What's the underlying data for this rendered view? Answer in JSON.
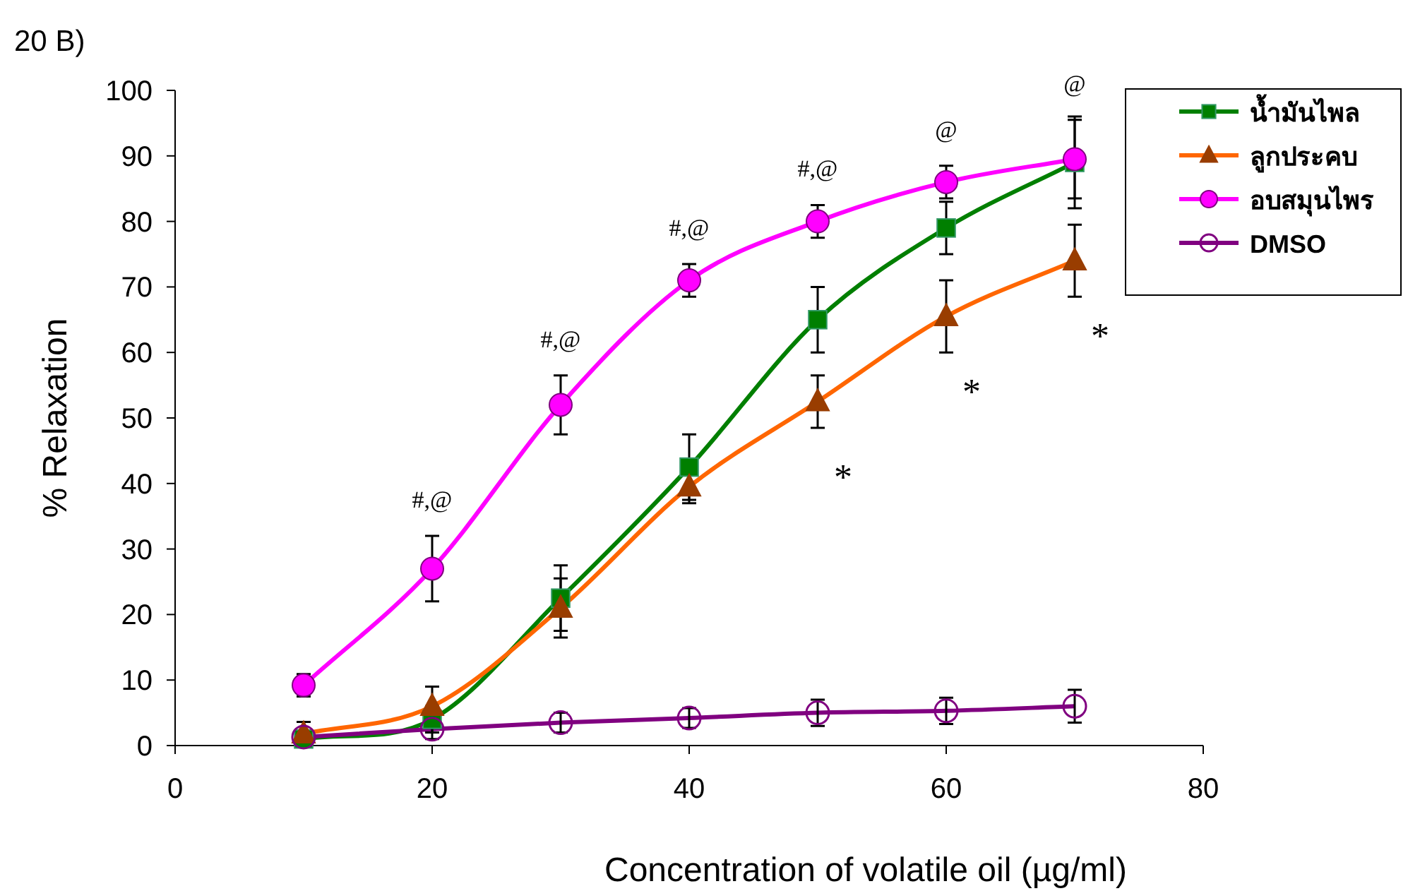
{
  "chart_data": {
    "type": "line",
    "title": "20 B)",
    "xlabel": "Concentration of volatile oil (µg/ml)",
    "ylabel": "% Relaxation",
    "x": [
      10,
      20,
      30,
      40,
      50,
      60,
      70
    ],
    "xlim": [
      0,
      80
    ],
    "xticks": [
      0,
      20,
      40,
      60,
      80
    ],
    "ylim": [
      0,
      100
    ],
    "yticks": [
      0,
      10,
      20,
      30,
      40,
      50,
      60,
      70,
      80,
      90,
      100
    ],
    "grid": false,
    "legend": "top right",
    "line_style": "solid",
    "series": [
      {
        "name": "น้ำมันไพล",
        "color": "#007f00",
        "marker": "square",
        "values": [
          1,
          4,
          22.5,
          42.5,
          65,
          79,
          89
        ],
        "errors": [
          null,
          2,
          5,
          5,
          5,
          4,
          7
        ]
      },
      {
        "name": "ลูกประคบ",
        "color": "#ff6600",
        "marker": "triangle",
        "values": [
          1.8,
          6,
          21,
          39.5,
          52.5,
          65.5,
          74
        ],
        "errors": [
          1.8,
          3,
          4.5,
          2.5,
          4,
          5.5,
          5.5
        ]
      },
      {
        "name": "อบสมุนไพร",
        "color": "#ff00ff",
        "marker": "circle",
        "values": [
          9.2,
          27,
          52,
          71,
          80,
          86,
          89.5
        ],
        "errors": [
          1.7,
          5,
          4.5,
          2.5,
          2.5,
          2.5,
          6
        ]
      },
      {
        "name": "DMSO",
        "color": "#800080",
        "marker": "circle_open",
        "values": [
          1.3,
          2.5,
          3.5,
          4.2,
          5,
          5.3,
          6
        ],
        "errors": [
          null,
          1.5,
          1.5,
          1.5,
          2,
          2,
          2.5
        ]
      }
    ],
    "annotations": [
      {
        "text": "#,@",
        "x": 20,
        "y": 32
      },
      {
        "text": "#,@",
        "x": 30,
        "y": 56.5
      },
      {
        "text": "#,@",
        "x": 40,
        "y": 73.5
      },
      {
        "text": "#,@",
        "x": 50,
        "y": 82.5
      },
      {
        "text": "@",
        "x": 60,
        "y": 88.5
      },
      {
        "text": "@",
        "x": 70,
        "y": 95.5
      },
      {
        "text": "*",
        "x": 50,
        "y": 52.5
      },
      {
        "text": "*",
        "x": 60,
        "y": 65.5
      },
      {
        "text": "*",
        "x": 70,
        "y": 74
      }
    ]
  }
}
